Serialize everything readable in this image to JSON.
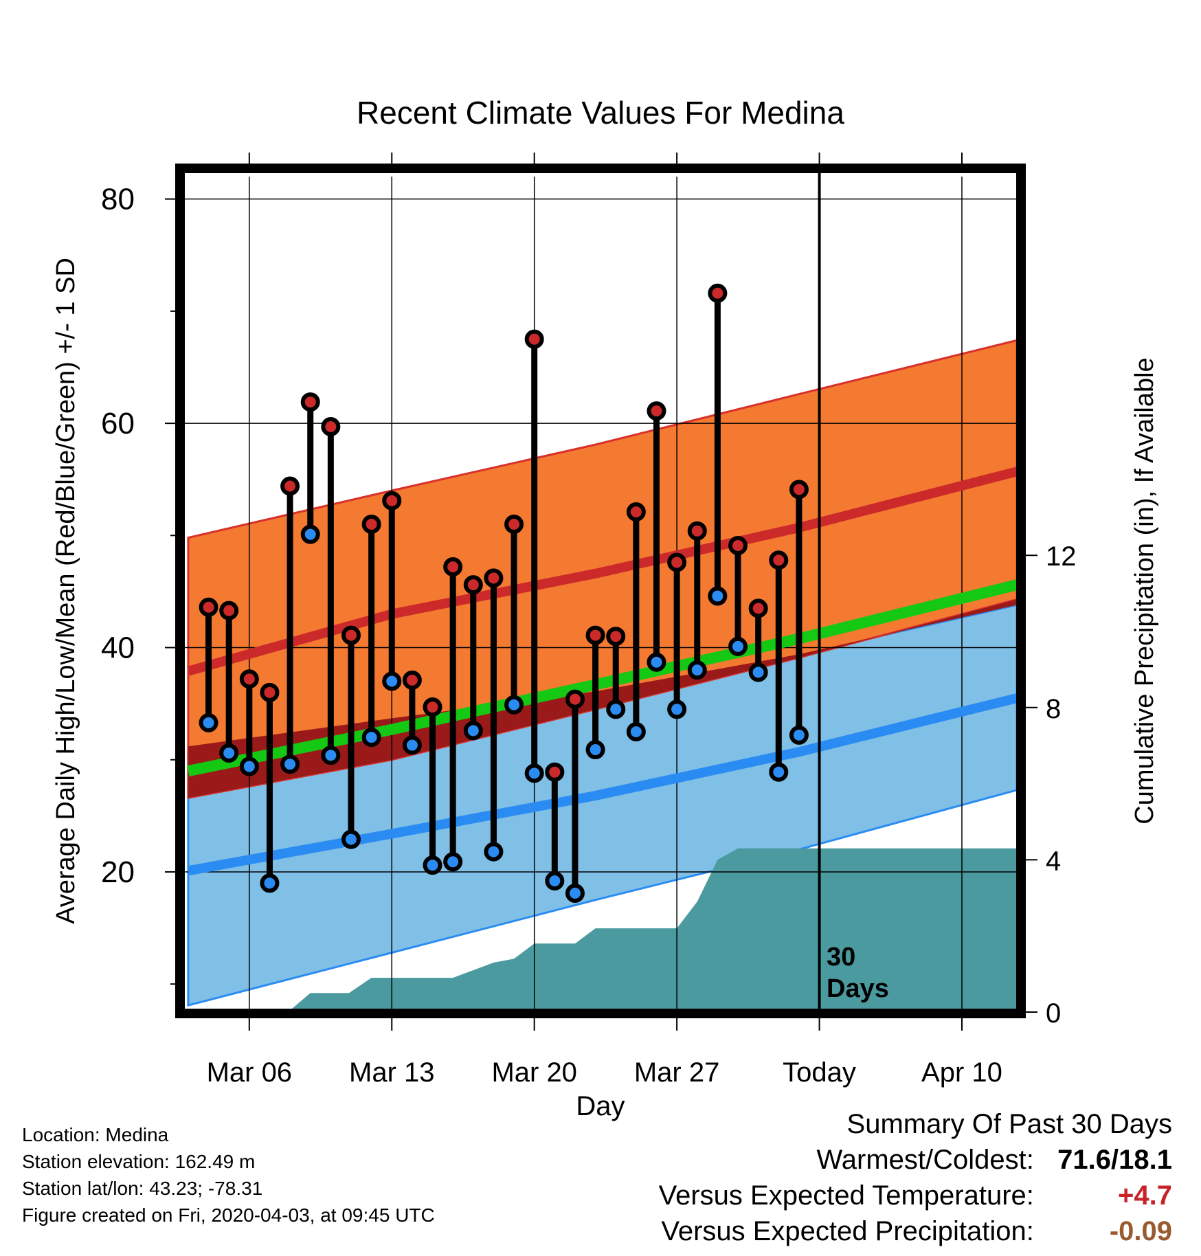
{
  "chart_data": {
    "type": "line",
    "title": "Recent Climate Values For Medina",
    "xlabel": "Day",
    "ylabel": "Average Daily High/Low/Mean (Red/Blue/Green) +/- 1 SD",
    "y2label": "Cumulative Precipitation (in), If Available",
    "ylim": [
      7.5,
      82
    ],
    "y2lim": [
      0,
      21.95
    ],
    "y_ticks": [
      "20",
      "40",
      "60",
      "80"
    ],
    "y2_ticks": [
      "0",
      "4",
      "8",
      "12"
    ],
    "x_ticks": [
      {
        "label": "Mar 06",
        "day": 6
      },
      {
        "label": "Mar 13",
        "day": 13
      },
      {
        "label": "Mar 20",
        "day": 20
      },
      {
        "label": "Mar 27",
        "day": 27
      },
      {
        "label": "Today",
        "day": 34
      },
      {
        "label": "Apr 10",
        "day": 41
      }
    ],
    "xlim_days": [
      2.8,
      43.7
    ],
    "today_day": 34,
    "today_annotation": "30 Days",
    "normal_high": {
      "x_days": [
        3,
        13,
        23,
        33,
        43.7
      ],
      "mean": [
        37.9,
        43.0,
        46.6,
        50.7,
        55.7
      ],
      "upper": [
        49.8,
        54.0,
        58.1,
        62.6,
        67.4
      ],
      "lower": [
        26.6,
        30.0,
        34.5,
        39.1,
        44.3
      ]
    },
    "normal_low": {
      "x_days": [
        3,
        13,
        23,
        33,
        43.7
      ],
      "mean": [
        20.1,
        23.4,
        26.8,
        30.7,
        35.5
      ],
      "upper": [
        31.2,
        33.7,
        36.1,
        39.4,
        43.8
      ],
      "lower": [
        8.1,
        12.8,
        17.5,
        22.0,
        27.3
      ]
    },
    "normal_mean": {
      "x_days": [
        3,
        13,
        23,
        33,
        43.7
      ],
      "values": [
        29.0,
        32.7,
        36.7,
        40.8,
        45.6
      ]
    },
    "series": [
      {
        "name": "High",
        "x_days": [
          4,
          5,
          6,
          7,
          8,
          9,
          10,
          11,
          12,
          13,
          14,
          15,
          16,
          17,
          18,
          19,
          20,
          21,
          22,
          23,
          24,
          25,
          26,
          27,
          28,
          29,
          30,
          31,
          32,
          33
        ],
        "values": [
          43.6,
          43.3,
          37.2,
          36.0,
          54.4,
          61.9,
          59.7,
          41.1,
          51.0,
          53.1,
          37.1,
          34.7,
          47.2,
          45.6,
          46.2,
          51.0,
          67.5,
          28.9,
          35.4,
          41.1,
          41.0,
          52.1,
          61.1,
          47.6,
          50.4,
          71.6,
          49.1,
          43.5,
          47.8,
          54.1
        ]
      },
      {
        "name": "Low",
        "x_days": [
          4,
          5,
          6,
          7,
          8,
          9,
          10,
          11,
          12,
          13,
          14,
          15,
          16,
          17,
          18,
          19,
          20,
          21,
          22,
          23,
          24,
          25,
          26,
          27,
          28,
          29,
          30,
          31,
          32,
          33
        ],
        "values": [
          33.3,
          30.6,
          29.4,
          19.0,
          29.6,
          50.1,
          30.4,
          22.9,
          32.0,
          37.0,
          31.3,
          20.6,
          20.9,
          32.6,
          21.8,
          34.9,
          28.8,
          19.2,
          18.1,
          30.9,
          34.5,
          32.5,
          38.7,
          34.5,
          38.0,
          44.6,
          40.1,
          37.8,
          28.9,
          32.2
        ]
      },
      {
        "name": "Cumulative Precipitation",
        "x_days": [
          3,
          7.9,
          9,
          10.9,
          12,
          14,
          16,
          18,
          19,
          20,
          21,
          22,
          23,
          24,
          26,
          27,
          28,
          29,
          30,
          31,
          43.7
        ],
        "values": [
          0,
          0,
          0.5,
          0.5,
          0.9,
          0.9,
          0.9,
          1.3,
          1.4,
          1.8,
          1.8,
          1.8,
          2.2,
          2.2,
          2.2,
          2.2,
          2.9,
          4.0,
          4.3,
          4.3,
          4.3
        ]
      }
    ],
    "colors": {
      "high_band": "#f47a31",
      "high_mean": "#cc2a2a",
      "low_band": "#80bfe6",
      "low_mean": "#2a8cf3",
      "normal_mean": "#14c814",
      "overlap": "#9a1a1a",
      "precip": "#4a9aa0",
      "high_marker": "#cc2a2a",
      "low_marker": "#2a8cf3"
    }
  },
  "info": {
    "location": "Location: Medina",
    "elevation": "Station elevation: 162.49 m",
    "latlon": "Station lat/lon: 43.23; -78.31",
    "created": "Figure created on Fri, 2020-04-03, at 09:45 UTC"
  },
  "summary": {
    "heading": "Summary Of Past 30 Days",
    "warmest_label": "Warmest/Coldest:",
    "warmest_value": "71.6/18.1",
    "temp_label": "Versus Expected Temperature:",
    "temp_value": "+4.7",
    "temp_color": "#c8232b",
    "precip_label": "Versus Expected Precipitation:",
    "precip_value": "-0.09",
    "precip_color": "#9a5a30"
  }
}
